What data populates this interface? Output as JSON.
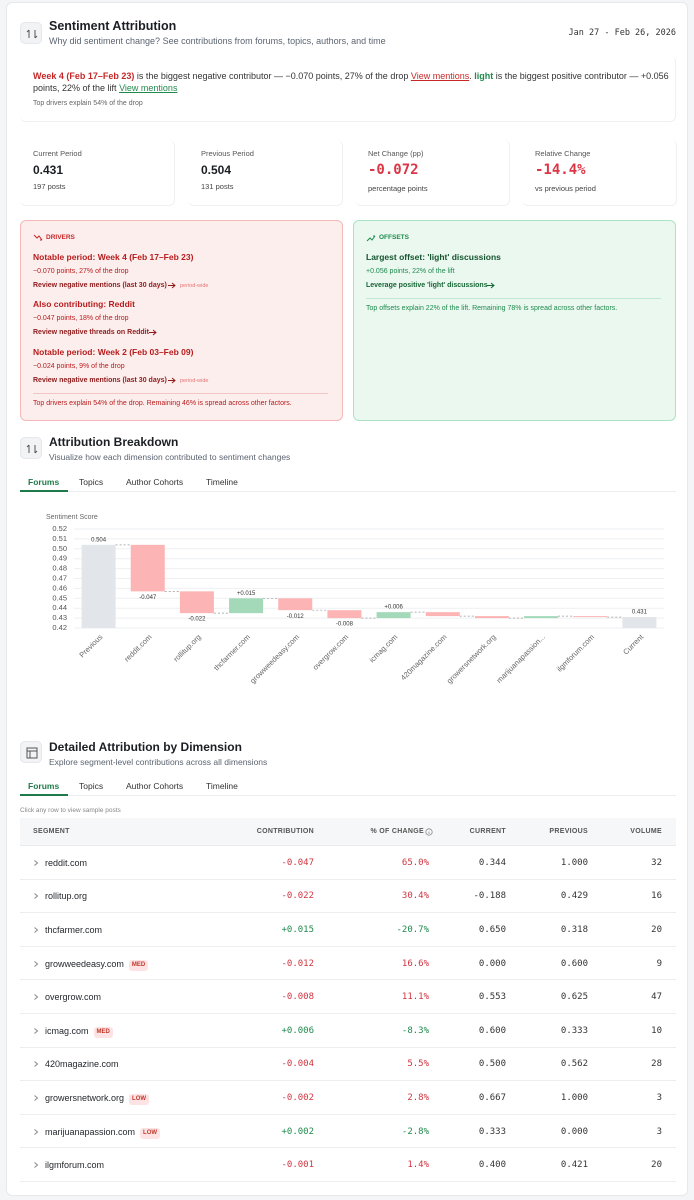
{
  "header": {
    "title": "Sentiment Attribution",
    "subtitle": "Why did sentiment change? See contributions from forums, topics, authors, and time",
    "date_range": "Jan 27 - Feb 26, 2026"
  },
  "summary": {
    "negative_label": "Week 4 (Feb 17–Feb 23)",
    "negative_text": "is the biggest negative contributor — −0.070 points, 27% of the drop",
    "negative_link": "View mentions",
    "separator": ".",
    "positive_label": "light",
    "positive_text": "is the biggest positive contributor — +0.056 points, 22% of the lift",
    "positive_link": "View mentions",
    "note": "Top drivers explain 54% of the drop"
  },
  "kpis": [
    {
      "label": "Current Period",
      "value": "0.431",
      "sub": "197 posts"
    },
    {
      "label": "Previous Period",
      "value": "0.504",
      "sub": "131 posts"
    },
    {
      "label": "Net Change (pp)",
      "value": "-0.072",
      "sub": "percentage points"
    },
    {
      "label": "Relative Change",
      "value": "-14.4%",
      "sub": "vs previous period"
    }
  ],
  "drivers": {
    "heading": "DRIVERS",
    "items": [
      {
        "title": "Notable period: Week 4 (Feb 17–Feb 23)",
        "detail": "−0.070 points, 27% of the drop",
        "link": "Review negative mentions (last 30 days)",
        "tag": "period-wide"
      },
      {
        "title": "Also contributing: Reddit",
        "detail": "−0.047 points, 18% of the drop",
        "link": "Review negative threads on Reddit"
      },
      {
        "title": "Notable period: Week 2 (Feb 03–Feb 09)",
        "detail": "−0.024 points, 9% of the drop",
        "link": "Review negative mentions (last 30 days)",
        "tag": "period-wide"
      }
    ],
    "footer": "Top drivers explain 54% of the drop. Remaining 46% is spread across other factors."
  },
  "offsets": {
    "heading": "OFFSETS",
    "items": [
      {
        "title": "Largest offset: 'light' discussions",
        "detail": "+0.056 points, 22% of the lift",
        "link": "Leverage positive 'light' discussions"
      }
    ],
    "footer": "Top offsets explain 22% of the lift. Remaining 78% is spread across other factors."
  },
  "breakdown": {
    "title": "Attribution Breakdown",
    "subtitle": "Visualize how each dimension contributed to sentiment changes",
    "tabs": [
      "Forums",
      "Topics",
      "Author Cohorts",
      "Timeline"
    ]
  },
  "chart_data": {
    "type": "waterfall",
    "y_label": "Sentiment Score",
    "categories": [
      "Previous",
      "reddit.com",
      "rollitup.org",
      "thcfarmer.com",
      "growweedeasy.com",
      "overgrow.com",
      "icmag.com",
      "420magazine.com",
      "growersnetwork.org",
      "marijuanapassion...",
      "ilgmforum.com",
      "Current"
    ],
    "values": [
      0.504,
      -0.047,
      -0.022,
      0.015,
      -0.012,
      -0.008,
      0.006,
      -0.004,
      -0.002,
      0.002,
      -0.001,
      0.431
    ],
    "value_labels": [
      "0.504",
      "-0.047",
      "-0.022",
      "+0.015",
      "-0.012",
      "-0.008",
      "+0.006",
      null,
      null,
      null,
      null,
      "0.431"
    ],
    "ylim": [
      0.42,
      0.52
    ],
    "yticks": [
      0.42,
      0.43,
      0.44,
      0.45,
      0.46,
      0.47,
      0.48,
      0.49,
      {
        "value": 0.5,
        "label": "0.50"
      },
      0.51,
      0.52
    ],
    "grid": true,
    "total_color": "#e2e5e9",
    "increase_color": "#a3d9b9",
    "decrease_color": "#fcb4b4"
  },
  "detail": {
    "title": "Detailed Attribution by Dimension",
    "subtitle": "Explore segment-level contributions across all dimensions",
    "tabs": [
      "Forums",
      "Topics",
      "Author Cohorts",
      "Timeline"
    ],
    "note": "Click any row to view sample posts"
  },
  "table": {
    "columns": [
      "SEGMENT",
      "CONTRIBUTION",
      "% OF CHANGE",
      "CURRENT",
      "PREVIOUS",
      "VOLUME"
    ],
    "rows": [
      {
        "segment": "reddit.com",
        "contribution": "-0.047",
        "pct_change": "65.0%",
        "current": "0.344",
        "previous": "1.000",
        "volume": "32"
      },
      {
        "segment": "rollitup.org",
        "contribution": "-0.022",
        "pct_change": "30.4%",
        "current": "-0.188",
        "previous": "0.429",
        "volume": "16"
      },
      {
        "segment": "thcfarmer.com",
        "contribution": "+0.015",
        "pct_change": "-20.7%",
        "current": "0.650",
        "previous": "0.318",
        "volume": "20"
      },
      {
        "segment": "growweedeasy.com",
        "badge": "MED",
        "contribution": "-0.012",
        "pct_change": "16.6%",
        "current": "0.000",
        "previous": "0.600",
        "volume": "9"
      },
      {
        "segment": "overgrow.com",
        "contribution": "-0.008",
        "pct_change": "11.1%",
        "current": "0.553",
        "previous": "0.625",
        "volume": "47"
      },
      {
        "segment": "icmag.com",
        "badge": "MED",
        "contribution": "+0.006",
        "pct_change": "-8.3%",
        "current": "0.600",
        "previous": "0.333",
        "volume": "10"
      },
      {
        "segment": "420magazine.com",
        "contribution": "-0.004",
        "pct_change": "5.5%",
        "current": "0.500",
        "previous": "0.562",
        "volume": "28"
      },
      {
        "segment": "growersnetwork.org",
        "badge": "LOW",
        "contribution": "-0.002",
        "pct_change": "2.8%",
        "current": "0.667",
        "previous": "1.000",
        "volume": "3"
      },
      {
        "segment": "marijuanapassion.com",
        "badge": "LOW",
        "contribution": "+0.002",
        "pct_change": "-2.8%",
        "current": "0.333",
        "previous": "0.000",
        "volume": "3"
      },
      {
        "segment": "ilgmforum.com",
        "contribution": "-0.001",
        "pct_change": "1.4%",
        "current": "0.400",
        "previous": "0.421",
        "volume": "20"
      }
    ]
  }
}
